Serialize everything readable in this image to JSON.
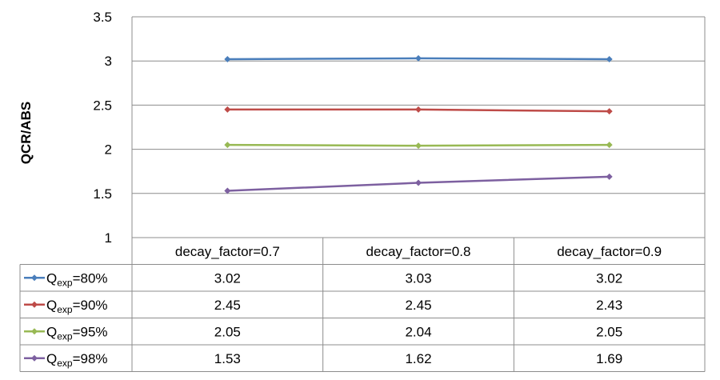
{
  "chart_data": {
    "type": "line",
    "title": "",
    "xlabel": "",
    "ylabel": "QCR/ABS",
    "ylim": [
      1,
      3.5
    ],
    "yticks": [
      "1",
      "1.5",
      "2",
      "2.5",
      "3",
      "3.5"
    ],
    "grid": true,
    "data_table": true,
    "categories": [
      "decay_factor=0.7",
      "decay_factor=0.8",
      "decay_factor=0.9"
    ],
    "series": [
      {
        "name": "Q",
        "sub": "exp",
        "suffix": "=80%",
        "color": "#4a7ebb",
        "values": [
          3.02,
          3.03,
          3.02
        ],
        "labels": [
          "3.02",
          "3.03",
          "3.02"
        ]
      },
      {
        "name": "Q",
        "sub": "exp",
        "suffix": "=90%",
        "color": "#be4b48",
        "values": [
          2.45,
          2.45,
          2.43
        ],
        "labels": [
          "2.45",
          "2.45",
          "2.43"
        ]
      },
      {
        "name": "Q",
        "sub": "exp",
        "suffix": "=95%",
        "color": "#98b954",
        "values": [
          2.05,
          2.04,
          2.05
        ],
        "labels": [
          "2.05",
          "2.04",
          "2.05"
        ]
      },
      {
        "name": "Q",
        "sub": "exp",
        "suffix": "=98%",
        "color": "#7d60a0",
        "values": [
          1.53,
          1.62,
          1.69
        ],
        "labels": [
          "1.53",
          "1.62",
          "1.69"
        ]
      }
    ]
  }
}
